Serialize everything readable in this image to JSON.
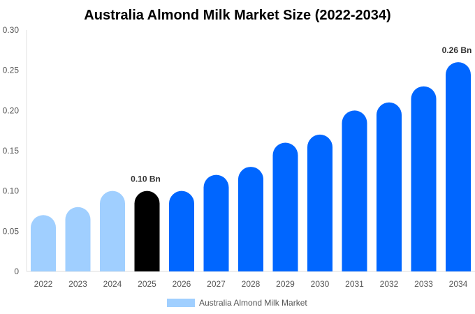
{
  "chart_data": {
    "type": "bar",
    "title": "Australia Almond Milk Market Size (2022-2034)",
    "xlabel": "",
    "ylabel": "",
    "ylim": [
      0,
      0.3
    ],
    "yticks": [
      "0",
      "0.05",
      "0.10",
      "0.15",
      "0.20",
      "0.25",
      "0.30"
    ],
    "grid": false,
    "legend_position": "bottom",
    "categories": [
      "2022",
      "2023",
      "2024",
      "2025",
      "2026",
      "2027",
      "2028",
      "2029",
      "2030",
      "2031",
      "2032",
      "2033",
      "2034"
    ],
    "series": [
      {
        "name": "Australia Almond Milk Market",
        "values": [
          0.07,
          0.08,
          0.1,
          0.1,
          0.1,
          0.12,
          0.13,
          0.16,
          0.17,
          0.2,
          0.21,
          0.23,
          0.26
        ],
        "colors": [
          "#a0cfff",
          "#a0cfff",
          "#a0cfff",
          "#000000",
          "#0066ff",
          "#0066ff",
          "#0066ff",
          "#0066ff",
          "#0066ff",
          "#0066ff",
          "#0066ff",
          "#0066ff",
          "#0066ff"
        ]
      }
    ],
    "data_labels": [
      {
        "category": "2025",
        "text": "0.10 Bn"
      },
      {
        "category": "2034",
        "text": "0.26 Bn"
      }
    ],
    "legend_color": "#a0cfff"
  }
}
